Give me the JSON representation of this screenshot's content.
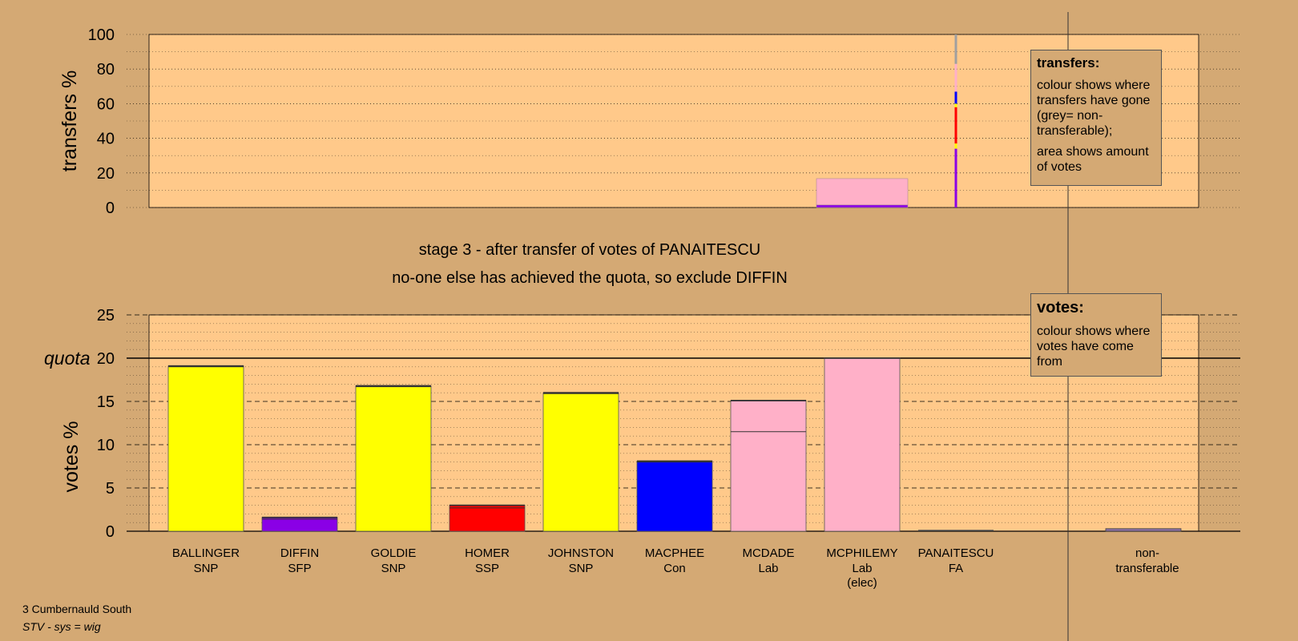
{
  "stage_caption": "stage 3 - after transfer of votes of PANAITESCU",
  "action_caption": "no-one else has achieved the quota, so exclude DIFFIN",
  "legend_transfers": {
    "title": "transfers:",
    "line1": "colour shows where transfers have gone (grey= non-transferable);",
    "line2": "area shows amount of votes"
  },
  "legend_votes": {
    "title": "votes:",
    "line1": "colour shows where votes have come from"
  },
  "footer": {
    "constituency": "3 Cumbernauld South",
    "system": "STV - sys = wig"
  },
  "colors": {
    "background": "#d4a974",
    "plot": "#ffc98a",
    "SNP": "#ffff00",
    "SFP": "#8a00e6",
    "SSP": "#ff0000",
    "Con": "#0000ff",
    "Lab": "#ffb0c8",
    "non-transferable": "#a0a0a0"
  },
  "chart_data": [
    {
      "type": "bar",
      "ylabel": "transfers %",
      "ylim": [
        0,
        100
      ],
      "yticks": [
        0,
        20,
        40,
        60,
        80,
        100
      ],
      "categories": [
        "BALLINGER",
        "DIFFIN",
        "GOLDIE",
        "HOMER",
        "JOHNSTON",
        "MACPHEE",
        "MCDADE",
        "MCPHILEMY",
        "PANAITESCU",
        "non-transferable"
      ],
      "series": [
        {
          "category": "MCPHILEMY",
          "segments": [
            {
              "party": "SFP",
              "value": 1.5
            },
            {
              "party": "Lab",
              "value": 15.2
            }
          ]
        },
        {
          "category": "PANAITESCU",
          "segments": [
            {
              "party": "SFP",
              "value": 34
            },
            {
              "party": "SNP",
              "value": 3
            },
            {
              "party": "SSP",
              "value": 21
            },
            {
              "party": "SNP",
              "value": 2
            },
            {
              "party": "Con",
              "value": 7
            },
            {
              "party": "Lab",
              "value": 16
            },
            {
              "party": "non-transferable",
              "value": 17
            }
          ]
        }
      ]
    },
    {
      "type": "bar",
      "ylabel": "votes %",
      "ylim": [
        0,
        25
      ],
      "yticks": [
        0,
        5,
        10,
        15,
        20,
        25
      ],
      "quota": {
        "label": "quota",
        "value": 20
      },
      "categories": [
        {
          "name": "BALLINGER",
          "party": "SNP",
          "value": 19.1,
          "prev": 19.0,
          "extra": ""
        },
        {
          "name": "DIFFIN",
          "party": "SFP",
          "value": 1.6,
          "prev": 1.4,
          "extra": ""
        },
        {
          "name": "GOLDIE",
          "party": "SNP",
          "value": 16.8,
          "prev": 16.7,
          "extra": ""
        },
        {
          "name": "HOMER",
          "party": "SSP",
          "value": 3.0,
          "prev": 2.7,
          "extra": ""
        },
        {
          "name": "JOHNSTON",
          "party": "SNP",
          "value": 16.0,
          "prev": 15.9,
          "extra": ""
        },
        {
          "name": "MACPHEE",
          "party": "Con",
          "value": 8.1,
          "prev": 8.0,
          "extra": ""
        },
        {
          "name": "MCDADE",
          "party": "Lab",
          "value": 15.1,
          "prev": 11.5,
          "extra": ""
        },
        {
          "name": "MCPHILEMY",
          "party": "Lab",
          "value": 20.0,
          "prev": 20.0,
          "extra": "(elec)"
        },
        {
          "name": "PANAITESCU",
          "party": "FA",
          "value": 0,
          "prev": 0,
          "extra": ""
        }
      ],
      "non_transferable": {
        "label": "non-",
        "label2": "transferable",
        "value": 0.3
      }
    }
  ]
}
